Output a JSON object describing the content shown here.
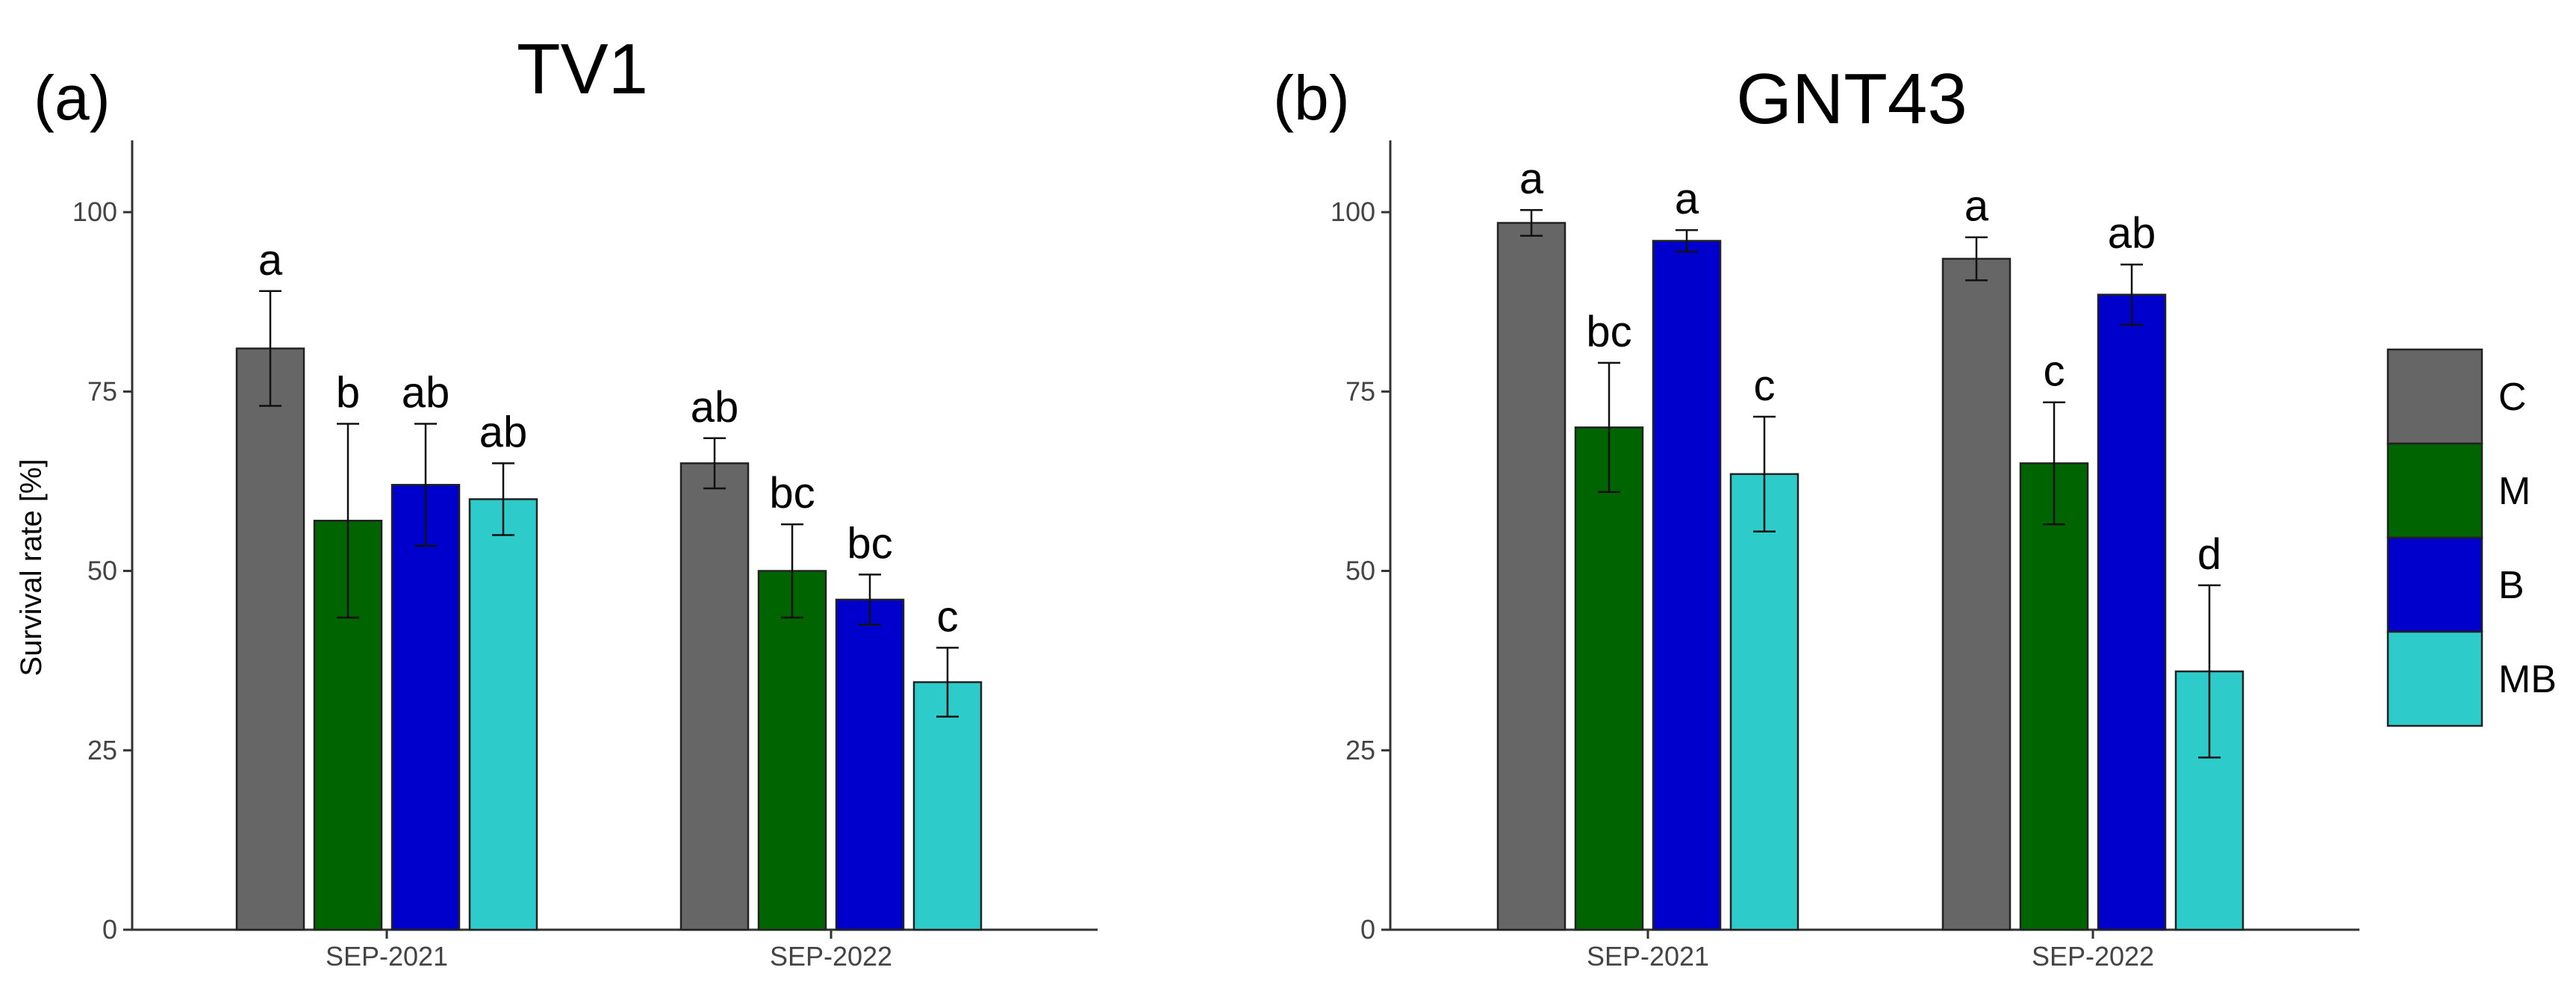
{
  "chart_data": [
    {
      "type": "bar",
      "panel": "(a)",
      "title": "TV1",
      "xlabel": "",
      "ylabel": "Survival rate [%]",
      "ylim": [
        0,
        110
      ],
      "yticks": [
        0,
        25,
        50,
        75,
        100
      ],
      "categories": [
        "SEP-2021",
        "SEP-2022"
      ],
      "series": [
        {
          "name": "C",
          "color": "#666666",
          "values": [
            81,
            65
          ],
          "errors": [
            8,
            3.5
          ],
          "labels": [
            "a",
            "ab"
          ]
        },
        {
          "name": "M",
          "color": "#006400",
          "values": [
            57,
            50
          ],
          "errors": [
            13.5,
            6.5
          ],
          "labels": [
            "b",
            "bc"
          ]
        },
        {
          "name": "B",
          "color": "#0000cd",
          "values": [
            62,
            46
          ],
          "errors": [
            8.5,
            3.5
          ],
          "labels": [
            "ab",
            "bc"
          ]
        },
        {
          "name": "MB",
          "color": "#2ecbcb",
          "values": [
            60,
            34.5
          ],
          "errors": [
            5,
            4.8
          ],
          "labels": [
            "ab",
            "c"
          ]
        }
      ]
    },
    {
      "type": "bar",
      "panel": "(b)",
      "title": "GNT43",
      "xlabel": "",
      "ylabel": "",
      "ylim": [
        0,
        110
      ],
      "yticks": [
        0,
        25,
        50,
        75,
        100
      ],
      "categories": [
        "SEP-2021",
        "SEP-2022"
      ],
      "series": [
        {
          "name": "C",
          "color": "#666666",
          "values": [
            98.5,
            93.5
          ],
          "errors": [
            1.8,
            3
          ],
          "labels": [
            "a",
            "a"
          ]
        },
        {
          "name": "M",
          "color": "#006400",
          "values": [
            70,
            65
          ],
          "errors": [
            9,
            8.5
          ],
          "labels": [
            "bc",
            "c"
          ]
        },
        {
          "name": "B",
          "color": "#0000cd",
          "values": [
            96,
            88.5
          ],
          "errors": [
            1.5,
            4.2
          ],
          "labels": [
            "a",
            "ab"
          ]
        },
        {
          "name": "MB",
          "color": "#2ecbcb",
          "values": [
            63.5,
            36
          ],
          "errors": [
            8,
            12
          ],
          "labels": [
            "c",
            "d"
          ]
        }
      ]
    }
  ],
  "legend": {
    "position": "right",
    "items": [
      {
        "name": "C",
        "color": "#666666"
      },
      {
        "name": "M",
        "color": "#006400"
      },
      {
        "name": "B",
        "color": "#0000cd"
      },
      {
        "name": "MB",
        "color": "#2ecbcb"
      }
    ]
  }
}
